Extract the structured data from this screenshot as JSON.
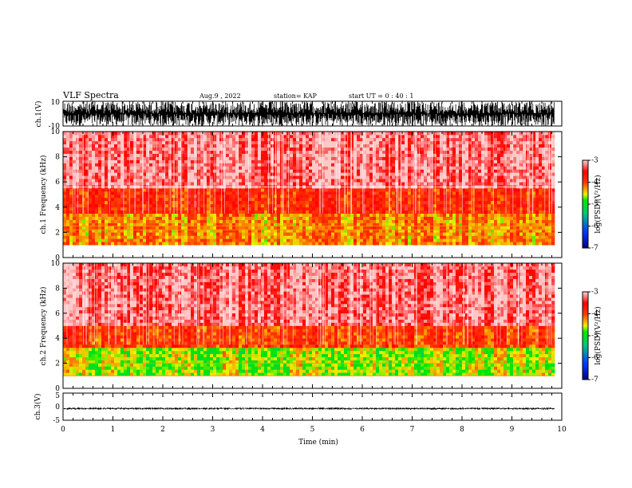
{
  "header": {
    "title": "VLF Spectra",
    "date": "Aug.9 , 2022",
    "station": "station= KAP",
    "start": "start UT = 0 : 40 : 1"
  },
  "chart_data": [
    {
      "type": "line",
      "name": "ch1-waveform",
      "ylabel": "ch.1(V)",
      "ylim": [
        -10,
        10
      ],
      "ytick_labels": [
        "10",
        "-10"
      ],
      "xlim": [
        0,
        10
      ],
      "data_extent_min": 9.85,
      "envelope": {
        "min": -10,
        "max": 10
      },
      "color": "#000000"
    },
    {
      "type": "heatmap",
      "name": "ch1-spectrogram",
      "ylabel": "ch.1 Frequency (kHz)",
      "ylim": [
        0,
        10
      ],
      "ytick_labels": [
        "0",
        "2",
        "4",
        "6",
        "8",
        "10"
      ],
      "xlim": [
        0,
        10
      ],
      "data_extent_min": 9.85,
      "bands": [
        {
          "f_low": 1.0,
          "f_high": 3.5,
          "log_psd": -4.2
        },
        {
          "f_low": 3.5,
          "f_high": 5.5,
          "log_psd": -3.8
        },
        {
          "f_low": 5.5,
          "f_high": 10.0,
          "log_psd": -3.2
        }
      ],
      "lines_khz": [
        2.2,
        2.5,
        5.6
      ],
      "colorbar": {
        "label": "log(PSD)(V²/Hz)",
        "range": [
          -7,
          -3
        ],
        "tick_labels": [
          "-3",
          "-4",
          "-5",
          "-6",
          "-7"
        ]
      }
    },
    {
      "type": "heatmap",
      "name": "ch2-spectrogram",
      "ylabel": "ch.2 Frequency (kHz)",
      "ylim": [
        0,
        10
      ],
      "ytick_labels": [
        "0",
        "2",
        "4",
        "6",
        "8",
        "10"
      ],
      "xlim": [
        0,
        10
      ],
      "data_extent_min": 9.85,
      "bands": [
        {
          "f_low": 0.8,
          "f_high": 3.2,
          "log_psd": -4.6
        },
        {
          "f_low": 3.2,
          "f_high": 5.0,
          "log_psd": -3.9
        },
        {
          "f_low": 5.0,
          "f_high": 10.0,
          "log_psd": -3.2
        }
      ],
      "lines_khz": [
        2.0,
        1.0
      ],
      "colorbar": {
        "label": "log(PSD)(V²/Hz)",
        "range": [
          -7,
          -3
        ],
        "tick_labels": [
          "-3",
          "-4",
          "-5",
          "-6",
          "-7"
        ]
      }
    },
    {
      "type": "line",
      "name": "ch3-waveform",
      "ylabel": "ch.3(V)",
      "ylim": [
        -5,
        5
      ],
      "ytick_labels": [
        "5",
        "0",
        "-5"
      ],
      "xlim": [
        0,
        10
      ],
      "data_extent_min": 9.85,
      "envelope": {
        "min": -1.1,
        "max": -0.3
      },
      "color": "#000000"
    }
  ],
  "x_axis": {
    "label": "Time (min)",
    "tick_labels": [
      "0",
      "1",
      "2",
      "3",
      "4",
      "5",
      "6",
      "7",
      "8",
      "9",
      "10"
    ]
  }
}
